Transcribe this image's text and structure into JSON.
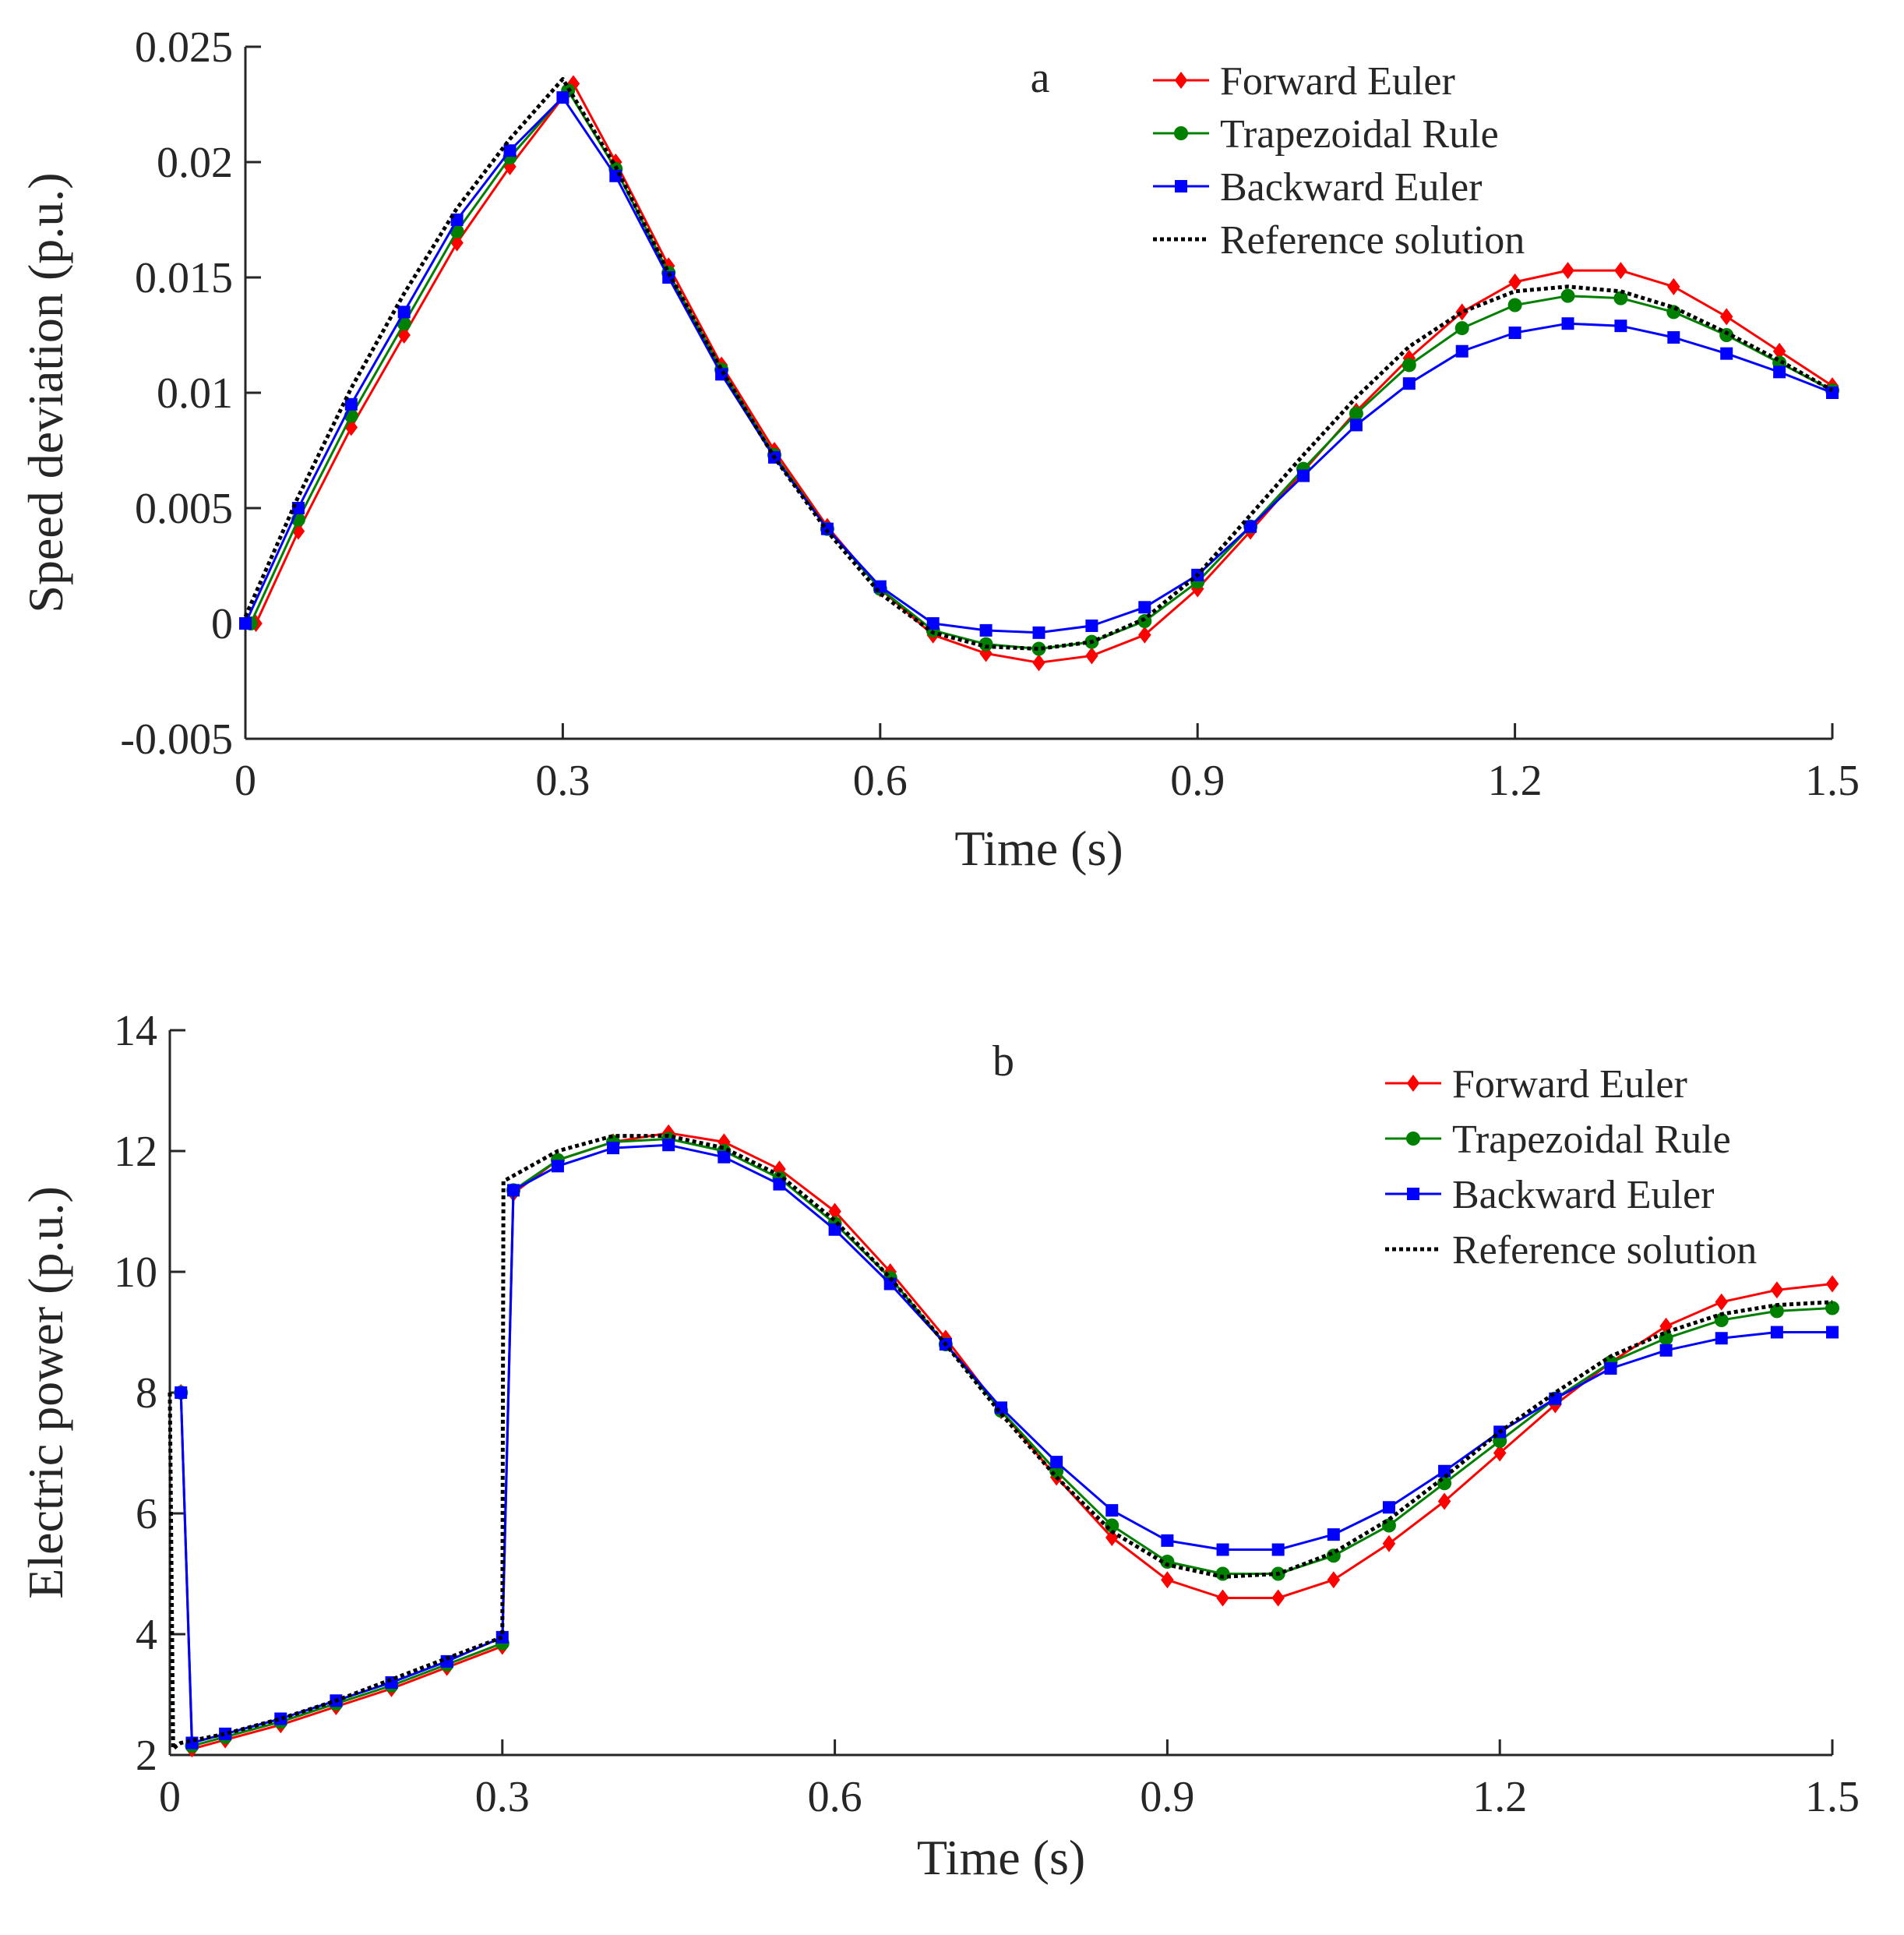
{
  "chart_data": [
    {
      "type": "line",
      "panel_label": "a",
      "xlabel": "Time (s)",
      "ylabel": "Speed deviation (p.u.)",
      "xlim": [
        0,
        1.5
      ],
      "ylim": [
        -0.005,
        0.025
      ],
      "x_ticks": [
        0,
        0.3,
        0.6,
        0.9,
        1.2,
        1.5
      ],
      "x_tick_labels": [
        "0",
        "0.3",
        "0.6",
        "0.9",
        "1.2",
        "1.5"
      ],
      "y_ticks": [
        -0.005,
        0,
        0.005,
        0.01,
        0.015,
        0.02,
        0.025
      ],
      "y_tick_labels": [
        "-0.005",
        "0",
        "0.005",
        "0.01",
        "0.015",
        "0.02",
        "0.025"
      ],
      "grid": false,
      "legend_position": "top-right",
      "series": [
        {
          "name": "Forward Euler",
          "color": "#ff0000",
          "marker": "diamond",
          "x": [
            0.01,
            0.05,
            0.1,
            0.15,
            0.2,
            0.25,
            0.31,
            0.35,
            0.4,
            0.45,
            0.5,
            0.55,
            0.6,
            0.65,
            0.7,
            0.75,
            0.8,
            0.85,
            0.9,
            0.95,
            1.0,
            1.05,
            1.1,
            1.15,
            1.2,
            1.25,
            1.3,
            1.35,
            1.4,
            1.45,
            1.5
          ],
          "y": [
            0,
            0.004,
            0.0085,
            0.0125,
            0.0165,
            0.0198,
            0.0234,
            0.02,
            0.0155,
            0.0112,
            0.0075,
            0.0042,
            0.0015,
            -0.0005,
            -0.0013,
            -0.0017,
            -0.0014,
            -0.0005,
            0.0015,
            0.004,
            0.0066,
            0.0092,
            0.0115,
            0.0135,
            0.0148,
            0.0153,
            0.0153,
            0.0146,
            0.0133,
            0.0118,
            0.0103
          ]
        },
        {
          "name": "Trapezoidal Rule",
          "color": "#008000",
          "marker": "circle",
          "x": [
            0.005,
            0.05,
            0.1,
            0.15,
            0.2,
            0.25,
            0.305,
            0.35,
            0.4,
            0.45,
            0.5,
            0.55,
            0.6,
            0.65,
            0.7,
            0.75,
            0.8,
            0.85,
            0.9,
            0.95,
            1.0,
            1.05,
            1.1,
            1.15,
            1.2,
            1.25,
            1.3,
            1.35,
            1.4,
            1.45,
            1.5
          ],
          "y": [
            0,
            0.0045,
            0.009,
            0.013,
            0.017,
            0.0202,
            0.0231,
            0.0197,
            0.0152,
            0.011,
            0.0073,
            0.0041,
            0.0015,
            -0.0003,
            -0.0009,
            -0.0011,
            -0.0008,
            0.0001,
            0.0018,
            0.0042,
            0.0067,
            0.0091,
            0.0112,
            0.0128,
            0.0138,
            0.0142,
            0.0141,
            0.0135,
            0.0125,
            0.0113,
            0.0101
          ]
        },
        {
          "name": "Backward Euler",
          "color": "#0000ff",
          "marker": "square",
          "x": [
            0,
            0.05,
            0.1,
            0.15,
            0.2,
            0.25,
            0.3,
            0.35,
            0.4,
            0.45,
            0.5,
            0.55,
            0.6,
            0.65,
            0.7,
            0.75,
            0.8,
            0.85,
            0.9,
            0.95,
            1.0,
            1.05,
            1.1,
            1.15,
            1.2,
            1.25,
            1.3,
            1.35,
            1.4,
            1.45,
            1.5
          ],
          "y": [
            0,
            0.005,
            0.0095,
            0.0135,
            0.0175,
            0.0205,
            0.0228,
            0.0194,
            0.015,
            0.0108,
            0.0072,
            0.0041,
            0.0016,
            0,
            -0.0003,
            -0.0004,
            -0.0001,
            0.0007,
            0.0021,
            0.0042,
            0.0064,
            0.0086,
            0.0104,
            0.0118,
            0.0126,
            0.013,
            0.0129,
            0.0124,
            0.0117,
            0.0109,
            0.01
          ]
        },
        {
          "name": "Reference solution",
          "color": "#000000",
          "marker": "none",
          "line_style": "dotted",
          "x": [
            0,
            0.05,
            0.1,
            0.15,
            0.2,
            0.25,
            0.3,
            0.35,
            0.4,
            0.45,
            0.5,
            0.55,
            0.6,
            0.65,
            0.7,
            0.75,
            0.8,
            0.85,
            0.9,
            0.95,
            1.0,
            1.05,
            1.1,
            1.15,
            1.2,
            1.25,
            1.3,
            1.35,
            1.4,
            1.45,
            1.5
          ],
          "y": [
            0.0003,
            0.0055,
            0.0102,
            0.0143,
            0.018,
            0.021,
            0.0236,
            0.0198,
            0.0152,
            0.011,
            0.0072,
            0.004,
            0.0013,
            -0.0004,
            -0.001,
            -0.0011,
            -0.0008,
            0.0002,
            0.0021,
            0.0047,
            0.0073,
            0.0098,
            0.012,
            0.0135,
            0.0144,
            0.0146,
            0.0144,
            0.0137,
            0.0126,
            0.0114,
            0.0101
          ]
        }
      ]
    },
    {
      "type": "line",
      "panel_label": "b",
      "xlabel": "Time (s)",
      "ylabel": "Electric power (p.u.)",
      "xlim": [
        0,
        1.5
      ],
      "ylim": [
        2,
        14
      ],
      "x_ticks": [
        0,
        0.3,
        0.6,
        0.9,
        1.2,
        1.5
      ],
      "x_tick_labels": [
        "0",
        "0.3",
        "0.6",
        "0.9",
        "1.2",
        "1.5"
      ],
      "y_ticks": [
        2,
        4,
        6,
        8,
        10,
        12,
        14
      ],
      "y_tick_labels": [
        "2",
        "4",
        "6",
        "8",
        "10",
        "12",
        "14"
      ],
      "grid": false,
      "legend_position": "top-right",
      "series": [
        {
          "name": "Forward Euler",
          "color": "#ff0000",
          "marker": "diamond",
          "x": [
            0.01,
            0.02,
            0.05,
            0.1,
            0.15,
            0.2,
            0.25,
            0.3,
            0.31,
            0.35,
            0.4,
            0.45,
            0.5,
            0.55,
            0.6,
            0.65,
            0.7,
            0.75,
            0.8,
            0.85,
            0.9,
            0.95,
            1.0,
            1.05,
            1.1,
            1.15,
            1.2,
            1.25,
            1.3,
            1.35,
            1.4,
            1.45,
            1.5
          ],
          "y": [
            8,
            2.1,
            2.25,
            2.5,
            2.8,
            3.1,
            3.45,
            3.8,
            11.3,
            11.85,
            12.15,
            12.3,
            12.15,
            11.7,
            11.0,
            10.0,
            8.9,
            7.7,
            6.6,
            5.6,
            4.9,
            4.6,
            4.6,
            4.9,
            5.5,
            6.2,
            7.0,
            7.8,
            8.5,
            9.1,
            9.5,
            9.7,
            9.8
          ]
        },
        {
          "name": "Trapezoidal Rule",
          "color": "#008000",
          "marker": "circle",
          "x": [
            0.01,
            0.02,
            0.05,
            0.1,
            0.15,
            0.2,
            0.25,
            0.3,
            0.31,
            0.35,
            0.4,
            0.45,
            0.5,
            0.55,
            0.6,
            0.65,
            0.7,
            0.75,
            0.8,
            0.85,
            0.9,
            0.95,
            1.0,
            1.05,
            1.1,
            1.15,
            1.2,
            1.25,
            1.3,
            1.35,
            1.4,
            1.45,
            1.5
          ],
          "y": [
            8,
            2.15,
            2.3,
            2.55,
            2.85,
            3.15,
            3.5,
            3.85,
            11.35,
            11.85,
            12.15,
            12.2,
            12.0,
            11.55,
            10.8,
            9.9,
            8.8,
            7.7,
            6.7,
            5.8,
            5.2,
            5.0,
            5.0,
            5.3,
            5.8,
            6.5,
            7.2,
            7.9,
            8.5,
            8.9,
            9.2,
            9.35,
            9.4
          ]
        },
        {
          "name": "Backward Euler",
          "color": "#0000ff",
          "marker": "square",
          "x": [
            0.01,
            0.02,
            0.05,
            0.1,
            0.15,
            0.2,
            0.25,
            0.3,
            0.31,
            0.35,
            0.4,
            0.45,
            0.5,
            0.55,
            0.6,
            0.65,
            0.7,
            0.75,
            0.8,
            0.85,
            0.9,
            0.95,
            1.0,
            1.05,
            1.1,
            1.15,
            1.2,
            1.25,
            1.3,
            1.35,
            1.4,
            1.45,
            1.5
          ],
          "y": [
            8,
            2.2,
            2.35,
            2.6,
            2.9,
            3.2,
            3.55,
            3.95,
            11.35,
            11.75,
            12.05,
            12.1,
            11.9,
            11.45,
            10.7,
            9.8,
            8.8,
            7.75,
            6.85,
            6.05,
            5.55,
            5.4,
            5.4,
            5.65,
            6.1,
            6.7,
            7.35,
            7.9,
            8.4,
            8.7,
            8.9,
            9.0,
            9.0
          ]
        },
        {
          "name": "Reference solution",
          "color": "#000000",
          "marker": "none",
          "line_style": "dotted",
          "x": [
            0,
            0.003,
            0.006,
            0.01,
            0.05,
            0.1,
            0.15,
            0.2,
            0.25,
            0.3,
            0.301,
            0.35,
            0.4,
            0.45,
            0.5,
            0.55,
            0.6,
            0.65,
            0.7,
            0.75,
            0.8,
            0.85,
            0.9,
            0.95,
            1.0,
            1.05,
            1.1,
            1.15,
            1.2,
            1.25,
            1.3,
            1.35,
            1.4,
            1.45,
            1.5
          ],
          "y": [
            8,
            2.1,
            2.15,
            2.2,
            2.35,
            2.6,
            2.9,
            3.25,
            3.6,
            3.95,
            11.5,
            12.0,
            12.25,
            12.25,
            12.05,
            11.6,
            10.85,
            9.9,
            8.8,
            7.65,
            6.6,
            5.7,
            5.15,
            4.95,
            5.0,
            5.35,
            5.9,
            6.6,
            7.35,
            8.0,
            8.6,
            9.0,
            9.3,
            9.45,
            9.5
          ]
        }
      ]
    }
  ]
}
